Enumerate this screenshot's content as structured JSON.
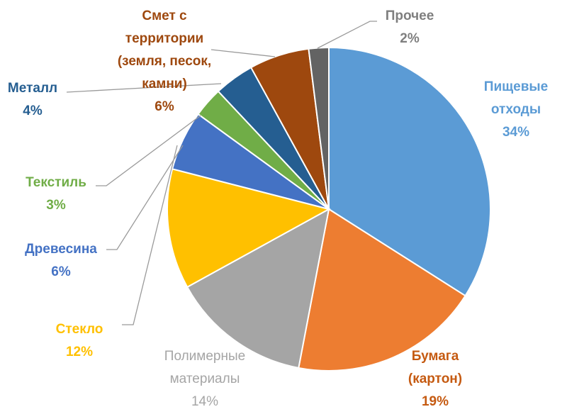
{
  "chart_data": {
    "type": "pie",
    "title": "",
    "slices": [
      {
        "name": "Пищевые отходы",
        "label_lines": [
          "Пищевые",
          "отходы"
        ],
        "pct_label": "34%",
        "value": 34,
        "color": "#5b9bd5"
      },
      {
        "name": "Бумага (картон)",
        "label_lines": [
          "Бумага",
          "(картон)"
        ],
        "pct_label": "19%",
        "value": 19,
        "color": "#ed7d31"
      },
      {
        "name": "Полимерные материалы",
        "label_lines": [
          "Полимерные",
          "материалы"
        ],
        "pct_label": "14%",
        "value": 14,
        "color": "#a5a5a5"
      },
      {
        "name": "Стекло",
        "label_lines": [
          "Стекло"
        ],
        "pct_label": "12%",
        "value": 12,
        "color": "#ffc000"
      },
      {
        "name": "Древесина",
        "label_lines": [
          "Древесина"
        ],
        "pct_label": "6%",
        "value": 6,
        "color": "#4472c4"
      },
      {
        "name": "Текстиль",
        "label_lines": [
          "Текстиль"
        ],
        "pct_label": "3%",
        "value": 3,
        "color": "#70ad47"
      },
      {
        "name": "Металл",
        "label_lines": [
          "Металл"
        ],
        "pct_label": "4%",
        "value": 4,
        "color": "#255e91"
      },
      {
        "name": "Смет с территории (земля, песок, камни)",
        "label_lines": [
          "Смет с",
          "территории",
          "(земля, песок,",
          "камни)"
        ],
        "pct_label": "6%",
        "value": 6,
        "color": "#9e480e"
      },
      {
        "name": "Прочее",
        "label_lines": [
          "Прочее"
        ],
        "pct_label": "2%",
        "value": 2,
        "color": "#636363"
      }
    ],
    "label_colors": {
      "Пищевые отходы": "#5b9bd5",
      "Бумага (картон)": "#c55a11",
      "Полимерные материалы": "#a5a5a5",
      "Стекло": "#ffc000",
      "Древесина": "#4472c4",
      "Текстиль": "#70ad47",
      "Металл": "#255e91",
      "Смет с территории (земля, песок, камни)": "#9e480e",
      "Прочее": "#7f7f7f"
    },
    "legend": "none",
    "start_angle": "12 o'clock",
    "direction": "clockwise"
  }
}
